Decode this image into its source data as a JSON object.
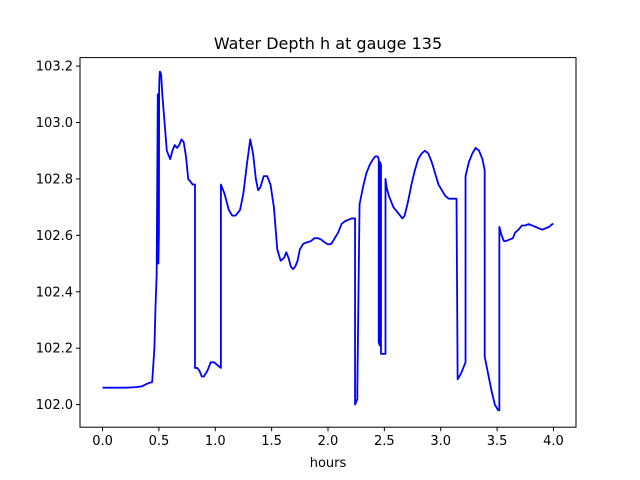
{
  "chart_data": {
    "type": "line",
    "title": "Water Depth h at gauge 135",
    "xlabel": "hours",
    "ylabel": "",
    "xlim": [
      -0.2,
      4.2
    ],
    "ylim": [
      101.92,
      103.23
    ],
    "xticks": [
      0.0,
      0.5,
      1.0,
      1.5,
      2.0,
      2.5,
      3.0,
      3.5,
      4.0
    ],
    "xtick_labels": [
      "0.0",
      "0.5",
      "1.0",
      "1.5",
      "2.0",
      "2.5",
      "3.0",
      "3.5",
      "4.0"
    ],
    "yticks": [
      102.0,
      102.2,
      102.4,
      102.6,
      102.8,
      103.0,
      103.2
    ],
    "ytick_labels": [
      "102.0",
      "102.2",
      "102.4",
      "102.6",
      "102.8",
      "103.0",
      "103.2"
    ],
    "grid": false,
    "series": [
      {
        "color": "#0000ff",
        "x": [
          0.0,
          0.1,
          0.2,
          0.3,
          0.35,
          0.4,
          0.44,
          0.46,
          0.47,
          0.48,
          0.49,
          0.495,
          0.5,
          0.502,
          0.505,
          0.508,
          0.51,
          0.52,
          0.53,
          0.55,
          0.57,
          0.6,
          0.62,
          0.64,
          0.66,
          0.68,
          0.7,
          0.72,
          0.74,
          0.76,
          0.78,
          0.8,
          0.82,
          0.82,
          0.84,
          0.86,
          0.88,
          0.9,
          0.93,
          0.96,
          0.99,
          1.02,
          1.05,
          1.05,
          1.08,
          1.1,
          1.12,
          1.15,
          1.18,
          1.22,
          1.25,
          1.28,
          1.31,
          1.335,
          1.36,
          1.38,
          1.4,
          1.43,
          1.46,
          1.49,
          1.52,
          1.55,
          1.58,
          1.61,
          1.63,
          1.65,
          1.67,
          1.69,
          1.71,
          1.73,
          1.75,
          1.78,
          1.81,
          1.83,
          1.85,
          1.88,
          1.91,
          1.94,
          1.97,
          2.0,
          2.03,
          2.06,
          2.09,
          2.12,
          2.15,
          2.18,
          2.21,
          2.24,
          2.24,
          2.26,
          2.26,
          2.28,
          2.31,
          2.34,
          2.37,
          2.4,
          2.42,
          2.44,
          2.45,
          2.45,
          2.46,
          2.46,
          2.47,
          2.47,
          2.51,
          2.51,
          2.52,
          2.54,
          2.56,
          2.58,
          2.6,
          2.62,
          2.64,
          2.66,
          2.68,
          2.71,
          2.74,
          2.77,
          2.8,
          2.83,
          2.86,
          2.89,
          2.92,
          2.95,
          2.98,
          3.01,
          3.04,
          3.07,
          3.1,
          3.12,
          3.14,
          3.15,
          3.15,
          3.18,
          3.22,
          3.22,
          3.25,
          3.28,
          3.31,
          3.34,
          3.37,
          3.39,
          3.39,
          3.42,
          3.45,
          3.48,
          3.51,
          3.52,
          3.52,
          3.54,
          3.56,
          3.58,
          3.61,
          3.64,
          3.66,
          3.69,
          3.72,
          3.75,
          3.78,
          3.81,
          3.84,
          3.87,
          3.9,
          3.93,
          3.96,
          3.99,
          4.0
        ],
        "y": [
          102.06,
          102.06,
          102.06,
          102.062,
          102.065,
          102.075,
          102.08,
          102.2,
          102.35,
          102.46,
          103.1,
          102.5,
          102.6,
          103.12,
          103.16,
          103.18,
          103.18,
          103.17,
          103.1,
          103.0,
          102.9,
          102.87,
          102.9,
          102.92,
          102.91,
          102.92,
          102.94,
          102.93,
          102.88,
          102.8,
          102.79,
          102.78,
          102.78,
          102.13,
          102.13,
          102.12,
          102.1,
          102.1,
          102.12,
          102.15,
          102.15,
          102.14,
          102.13,
          102.78,
          102.75,
          102.72,
          102.69,
          102.67,
          102.67,
          102.69,
          102.75,
          102.85,
          102.94,
          102.89,
          102.8,
          102.76,
          102.77,
          102.81,
          102.81,
          102.78,
          102.7,
          102.55,
          102.51,
          102.52,
          102.54,
          102.52,
          102.49,
          102.48,
          102.49,
          102.51,
          102.55,
          102.57,
          102.575,
          102.577,
          102.58,
          102.59,
          102.59,
          102.585,
          102.575,
          102.568,
          102.57,
          102.59,
          102.61,
          102.64,
          102.65,
          102.655,
          102.66,
          102.66,
          102.0,
          102.02,
          102.05,
          102.71,
          102.77,
          102.82,
          102.85,
          102.87,
          102.88,
          102.88,
          102.87,
          102.22,
          102.21,
          102.86,
          102.85,
          102.18,
          102.18,
          102.8,
          102.77,
          102.74,
          102.72,
          102.7,
          102.69,
          102.68,
          102.67,
          102.66,
          102.67,
          102.72,
          102.78,
          102.83,
          102.87,
          102.89,
          102.9,
          102.89,
          102.86,
          102.82,
          102.78,
          102.76,
          102.74,
          102.73,
          102.73,
          102.73,
          102.73,
          102.09,
          102.09,
          102.11,
          102.15,
          102.81,
          102.86,
          102.89,
          102.91,
          102.9,
          102.87,
          102.83,
          102.17,
          102.11,
          102.05,
          102.0,
          101.98,
          101.98,
          102.63,
          102.6,
          102.58,
          102.58,
          102.585,
          102.59,
          102.61,
          102.62,
          102.635,
          102.635,
          102.64,
          102.635,
          102.63,
          102.625,
          102.62,
          102.625,
          102.63,
          102.64,
          102.64
        ]
      }
    ]
  }
}
